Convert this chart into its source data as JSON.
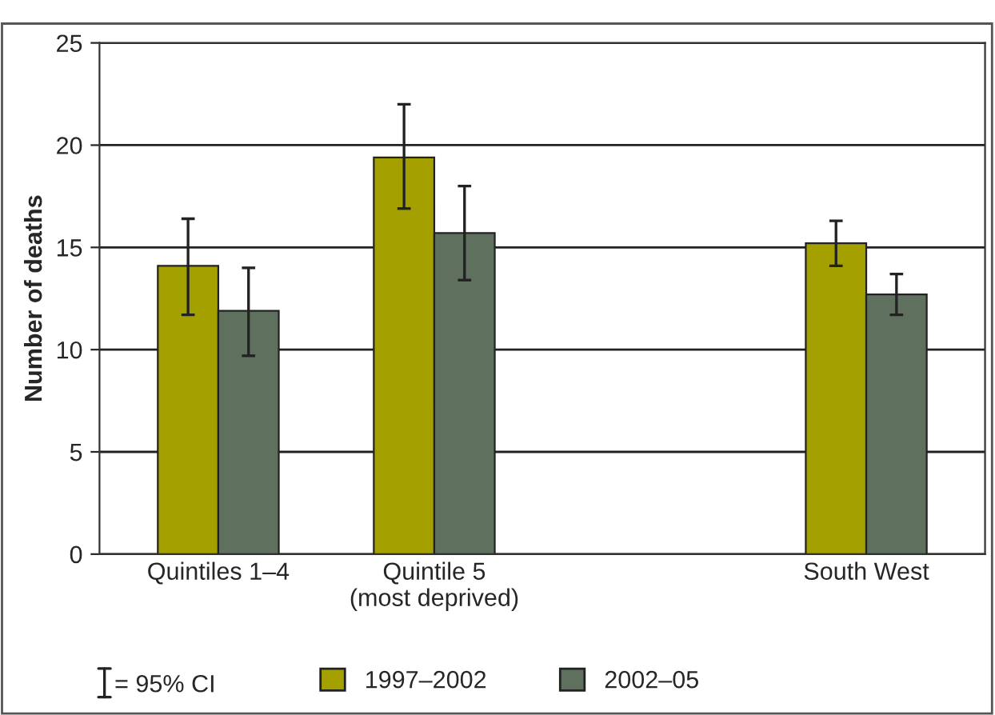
{
  "chart_data": {
    "type": "bar",
    "ylabel": "Number of deaths",
    "categories": [
      "Quintiles 1–4",
      "Quintile 5\n(most deprived)",
      null,
      "South West"
    ],
    "series": [
      {
        "name": "1997–2002",
        "color": "#a3a000",
        "values": [
          14.1,
          19.4,
          null,
          15.2
        ],
        "errors": [
          [
            11.7,
            16.4
          ],
          [
            16.9,
            22.0
          ],
          null,
          [
            14.1,
            16.3
          ]
        ]
      },
      {
        "name": "2002–05",
        "color": "#5f705e",
        "values": [
          11.9,
          15.7,
          null,
          12.7
        ],
        "errors": [
          [
            9.7,
            14.0
          ],
          [
            13.4,
            18.0
          ],
          null,
          [
            11.7,
            13.7
          ]
        ]
      }
    ],
    "ylim": [
      0,
      25
    ],
    "yticks": [
      0,
      5,
      10,
      15,
      20,
      25
    ],
    "grid": "y",
    "legend": "bottom",
    "annotations": [
      "= 95% CI"
    ]
  }
}
